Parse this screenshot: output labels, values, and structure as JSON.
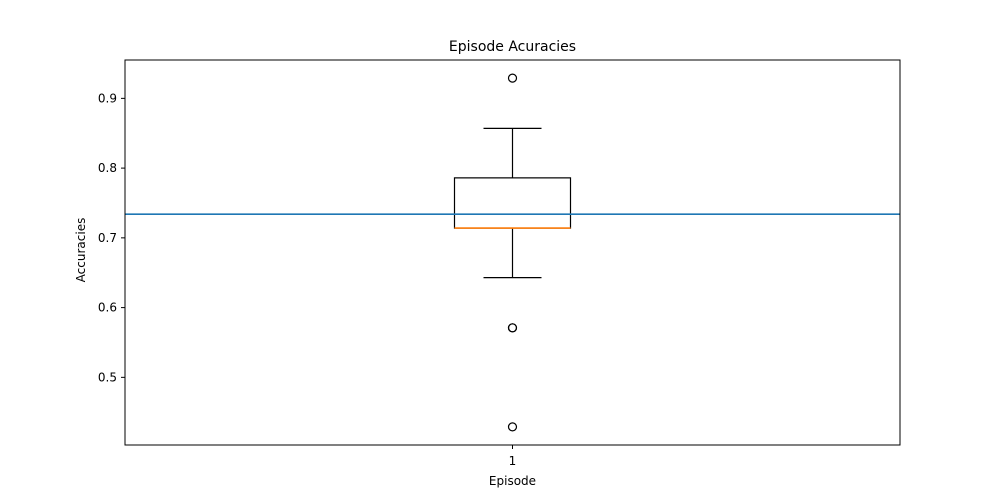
{
  "chart_data": {
    "type": "box",
    "title": "Episode Acuracies",
    "xlabel": "Episode",
    "ylabel": "Accuracies",
    "categories": [
      "1"
    ],
    "ylim": [
      0.403,
      0.955
    ],
    "yticks": [
      0.5,
      0.6,
      0.7,
      0.8,
      0.9
    ],
    "ytick_labels": [
      "0.5",
      "0.6",
      "0.7",
      "0.8",
      "0.9"
    ],
    "grid": false,
    "boxes": [
      {
        "category": "1",
        "whisker_low": 0.643,
        "q1": 0.714,
        "median": 0.714,
        "q3": 0.786,
        "whisker_high": 0.857,
        "outliers": [
          0.929,
          0.571,
          0.571,
          0.429
        ]
      }
    ],
    "reference_line": {
      "y": 0.734
    },
    "colors": {
      "box": "#000000",
      "median": "#ff7f0e",
      "reference_line": "#1f77b4",
      "outlier": "#000000"
    }
  }
}
